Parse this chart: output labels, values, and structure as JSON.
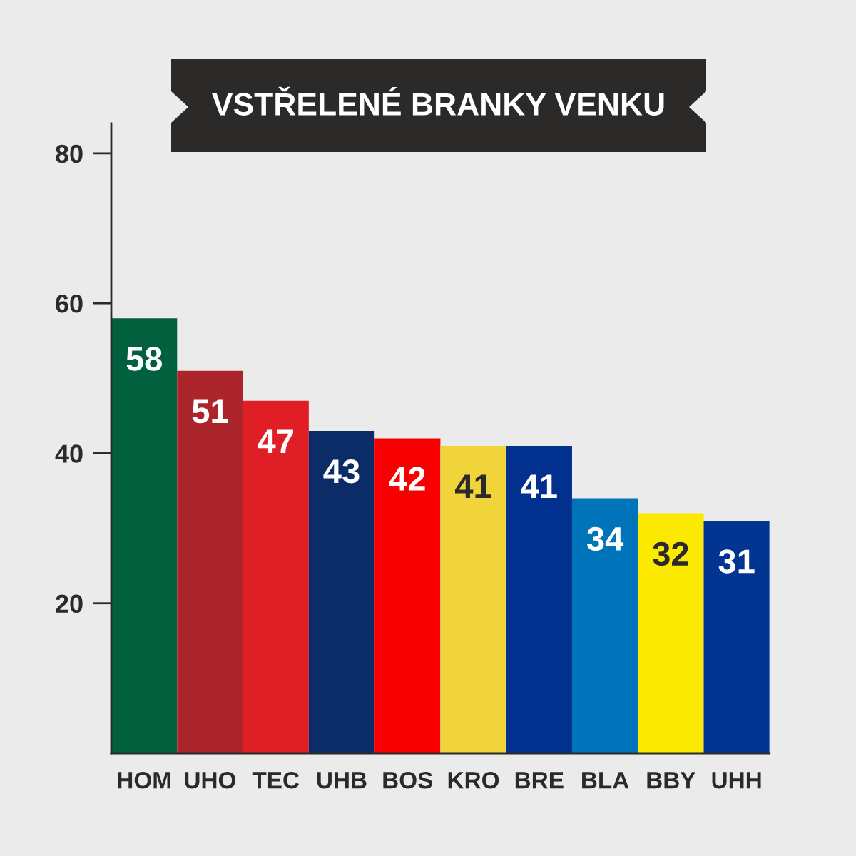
{
  "chart_data": {
    "type": "bar",
    "title": "VSTŘELENÉ BRANKY VENKU",
    "categories": [
      "HOM",
      "UHO",
      "TEC",
      "UHB",
      "BOS",
      "KRO",
      "BRE",
      "BLA",
      "BBY",
      "UHH"
    ],
    "values": [
      58,
      51,
      47,
      43,
      42,
      41,
      41,
      34,
      32,
      31
    ],
    "colors": [
      "#02603f",
      "#ab252a",
      "#e01e26",
      "#0c2c68",
      "#f80000",
      "#f0d43a",
      "#02308f",
      "#0074bb",
      "#fbea00",
      "#023591"
    ],
    "ylim": [
      0,
      84
    ],
    "yticks": [
      20,
      40,
      60,
      80
    ],
    "data_labels": true,
    "grid": false,
    "legend": false
  }
}
